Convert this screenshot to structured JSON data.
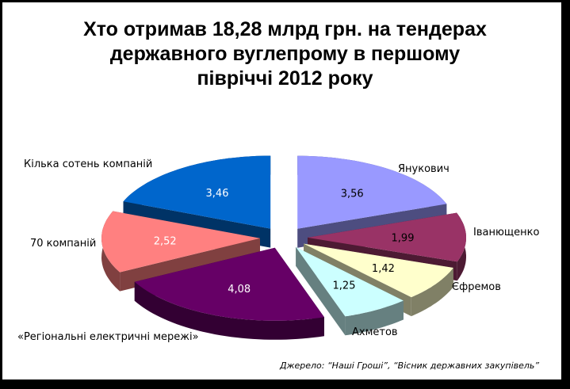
{
  "chart_data": {
    "type": "pie",
    "style": "3d-exploded",
    "title_lines": [
      "Хто отримав 18,28 млрд грн. на тендерах",
      "державного вуглепрому в першому",
      "півріччі 2012 року"
    ],
    "unit": "млрд грн.",
    "categories": [
      "Янукович",
      "Іванющенко",
      "Єфремов",
      "Ахметов",
      "«Регіональні електричні мережі»",
      "70 компаній",
      "Кілька сотень компаній"
    ],
    "values": [
      3.56,
      1.99,
      1.42,
      1.25,
      4.08,
      2.52,
      3.46
    ],
    "value_labels": [
      "3,56",
      "1,99",
      "1,42",
      "1,25",
      "4,08",
      "2,52",
      "3,46"
    ],
    "colors": [
      "#9999ff",
      "#993366",
      "#ffffcc",
      "#ccffff",
      "#660066",
      "#ff8080",
      "#0066cc"
    ],
    "side_colors": [
      "#4d4d80",
      "#4d1a33",
      "#808066",
      "#668080",
      "#330033",
      "#804040",
      "#003366"
    ],
    "value_label_colors": [
      "#000000",
      "#000000",
      "#000000",
      "#000000",
      "#ffffff",
      "#ffffff",
      "#ffffff"
    ],
    "source": "Джерело: “Наші Гроші”, “Вісник державних закупівель”"
  }
}
